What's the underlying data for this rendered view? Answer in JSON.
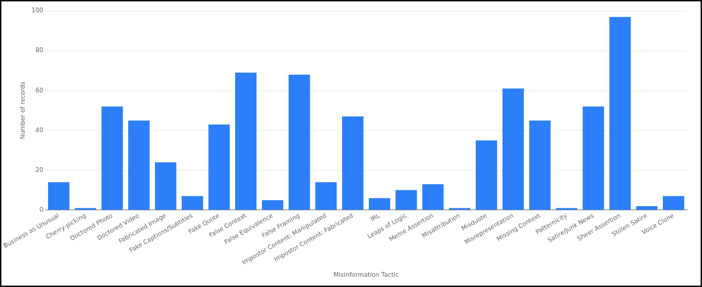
{
  "chart_data": {
    "type": "bar",
    "xlabel": "Misinformation Tactic",
    "ylabel": "Number of records",
    "categories": [
      "Business as Unusual",
      "Cherry-picking",
      "Doctored Photo",
      "Doctored Video",
      "Fabricated Image",
      "Fake Captions/Subtitles",
      "Fake Quote",
      "False Context",
      "False Equivalence",
      "False Framing",
      "Impostor Content: Manipulated",
      "Impostor Content: Fabricated",
      "IRL",
      "Leaps of Logic",
      "Meme Assertion",
      "Misattribution",
      "Misquote",
      "Misrepresentation",
      "Missing Context",
      "Patternicity",
      "Satire/Junk News",
      "Sheer Assertion",
      "Stolen Satire",
      "Voice Clone"
    ],
    "values": [
      14,
      1,
      52,
      45,
      24,
      7,
      43,
      69,
      5,
      68,
      14,
      47,
      6,
      10,
      13,
      1,
      35,
      61,
      45,
      1,
      52,
      97,
      2,
      7
    ],
    "color": "#2d7ff9",
    "ylim": [
      0,
      100
    ],
    "yticks": [
      0,
      20,
      40,
      60,
      80,
      100
    ],
    "grid": "y",
    "legend": false
  }
}
